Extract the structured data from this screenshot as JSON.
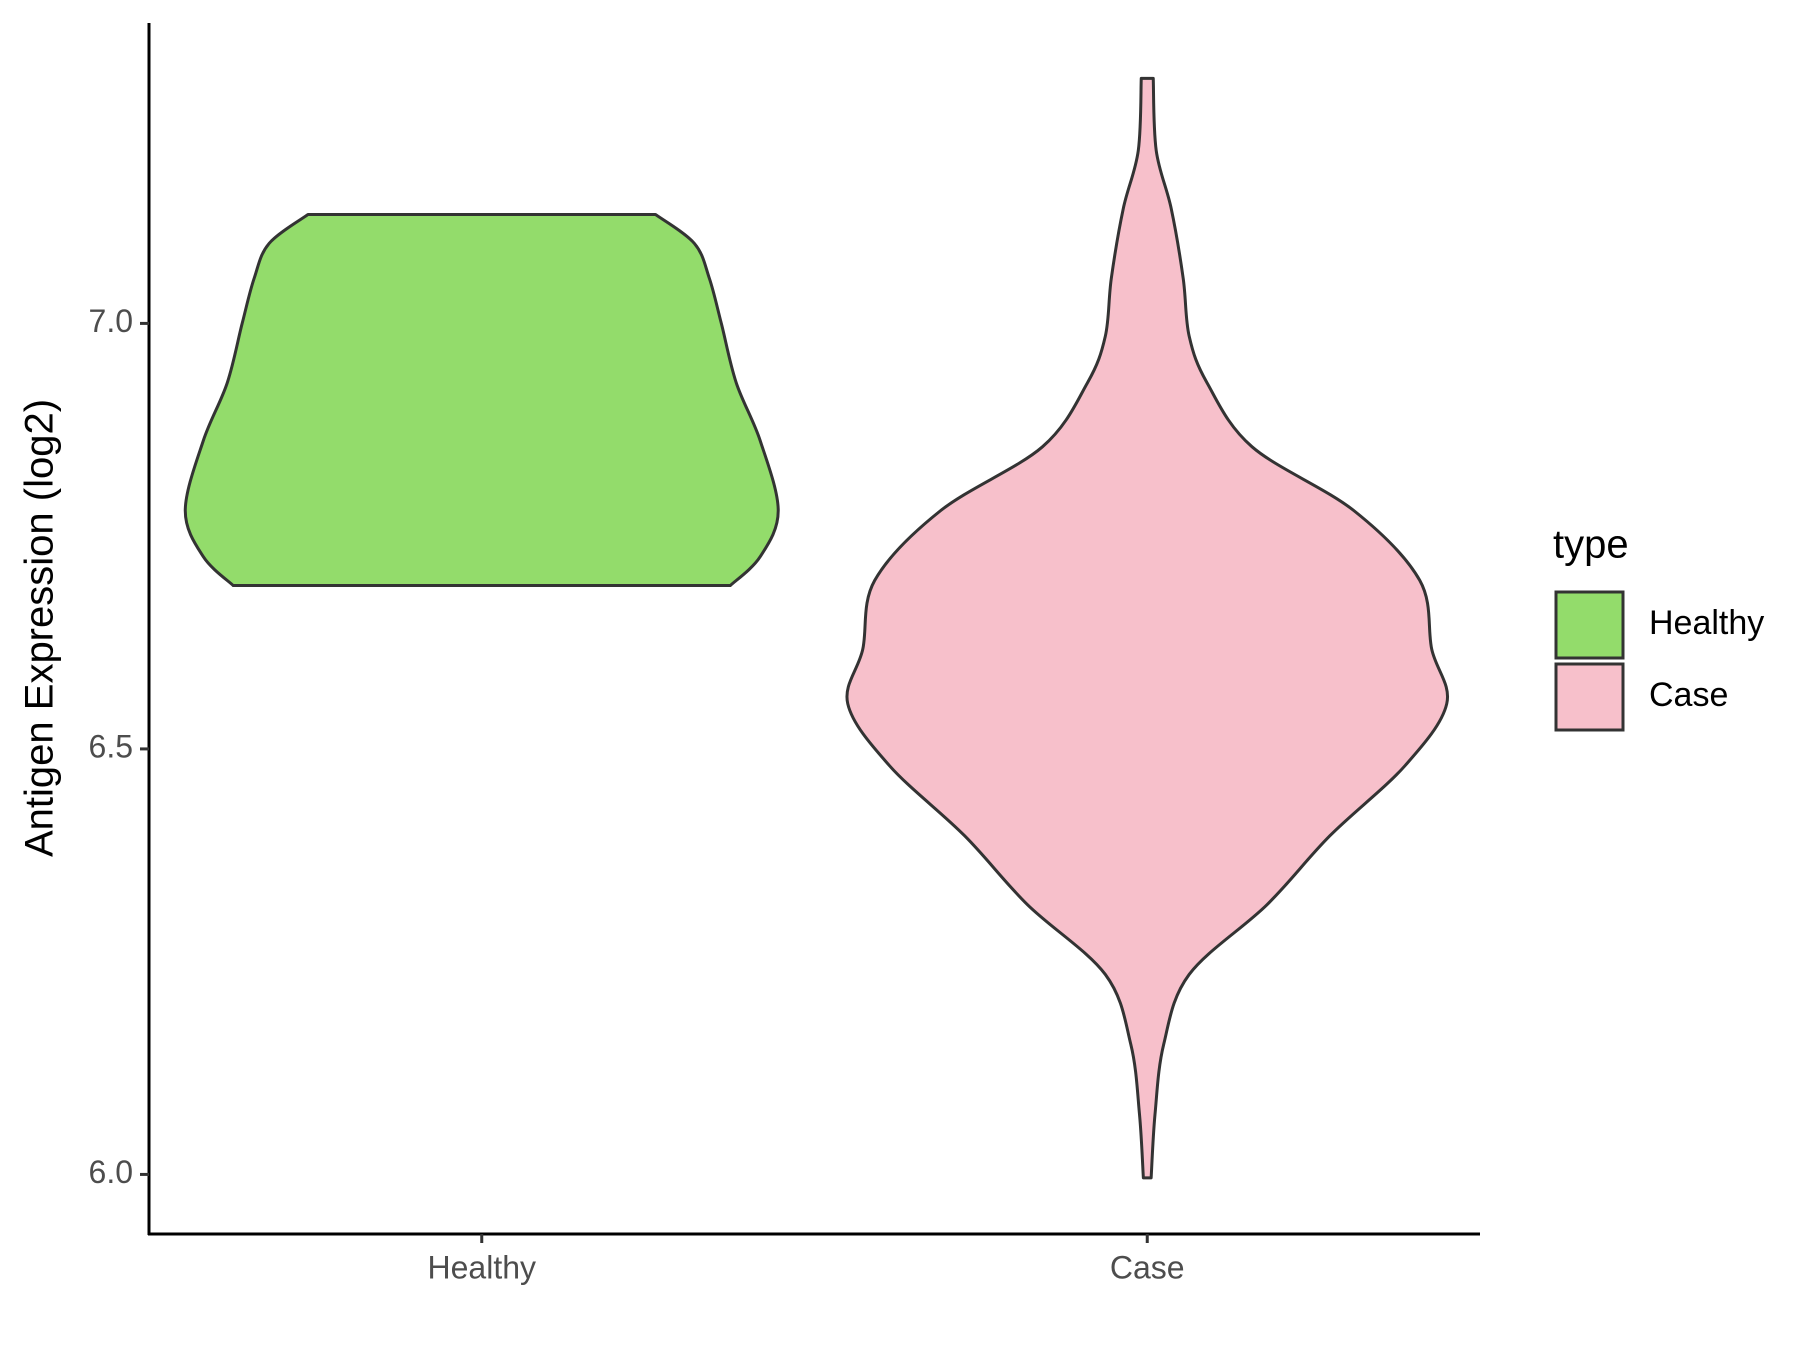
{
  "chart_data": {
    "type": "violin",
    "y_label": "Antigen Expression (log2)",
    "categories": [
      "Healthy",
      "Case"
    ],
    "legend_title": "type",
    "legend": "right",
    "ylim": [
      5.93,
      7.353
    ],
    "yticks": [
      {
        "value": 6.0,
        "label": "6.0"
      },
      {
        "value": 6.5,
        "label": "6.5"
      },
      {
        "value": 7.0,
        "label": "7.0"
      }
    ],
    "series": [
      {
        "name": "Healthy",
        "color": "#93dc6b",
        "y": [
          7.128,
          7.094,
          7.053,
          7.0,
          6.93,
          6.862,
          6.78,
          6.726,
          6.692
        ],
        "width": [
          0.58,
          0.71,
          0.76,
          0.8,
          0.85,
          0.93,
          0.99,
          0.93,
          0.83
        ]
      },
      {
        "name": "Case",
        "color": "#f7c0cb",
        "y": [
          7.288,
          7.203,
          7.135,
          7.053,
          6.985,
          6.93,
          6.855,
          6.78,
          6.698,
          6.617,
          6.553,
          6.48,
          6.398,
          6.317,
          6.235,
          6.153,
          6.071,
          5.996
        ],
        "width": [
          0.02,
          0.03,
          0.08,
          0.12,
          0.14,
          0.2,
          0.35,
          0.69,
          0.91,
          0.95,
          1.0,
          0.86,
          0.61,
          0.4,
          0.14,
          0.055,
          0.026,
          0.013
        ]
      }
    ]
  }
}
